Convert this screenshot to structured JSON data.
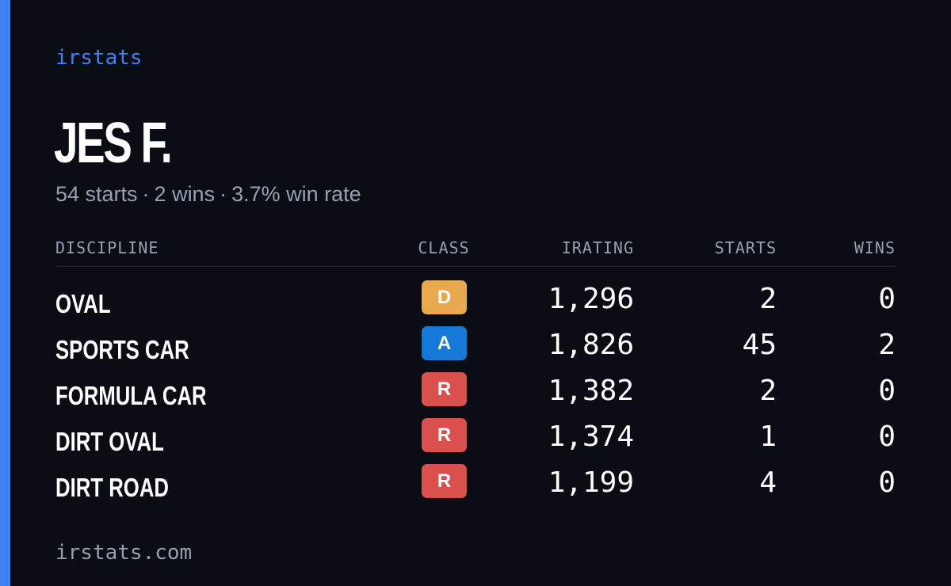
{
  "brand": "irstats",
  "driver": {
    "name": "JES F.",
    "starts_text": "54 starts",
    "wins_text": "2 wins",
    "win_rate_text": "3.7% win rate",
    "separator": "·"
  },
  "table": {
    "headers": {
      "discipline": "DISCIPLINE",
      "class": "CLASS",
      "irating": "IRATING",
      "starts": "STARTS",
      "wins": "WINS"
    },
    "rows": [
      {
        "discipline": "OVAL",
        "class": "D",
        "class_color": "#e8a84e",
        "irating": "1,296",
        "starts": "2",
        "wins": "0"
      },
      {
        "discipline": "SPORTS CAR",
        "class": "A",
        "class_color": "#1479d8",
        "irating": "1,826",
        "starts": "45",
        "wins": "2"
      },
      {
        "discipline": "FORMULA CAR",
        "class": "R",
        "class_color": "#d9504d",
        "irating": "1,382",
        "starts": "2",
        "wins": "0"
      },
      {
        "discipline": "DIRT OVAL",
        "class": "R",
        "class_color": "#d9504d",
        "irating": "1,374",
        "starts": "1",
        "wins": "0"
      },
      {
        "discipline": "DIRT ROAD",
        "class": "R",
        "class_color": "#d9504d",
        "irating": "1,199",
        "starts": "4",
        "wins": "0"
      }
    ]
  },
  "footer": "irstats.com",
  "colors": {
    "accent": "#3d82f6",
    "background": "#0a0d14",
    "muted_text": "#97a0b0"
  }
}
